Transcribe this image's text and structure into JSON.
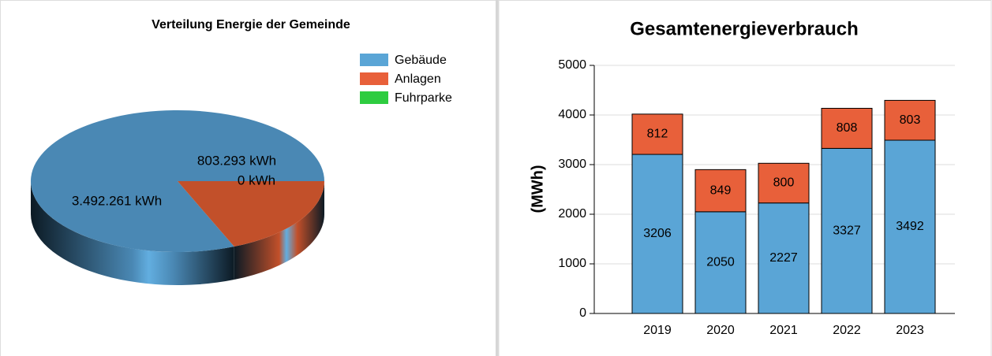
{
  "chart_data": [
    {
      "type": "pie3d",
      "title": "Verteilung Energie der Gemeinde",
      "categories": [
        "Gebäude",
        "Anlagen",
        "Fuhrparke"
      ],
      "values": [
        3492261,
        803293,
        0
      ],
      "value_labels": [
        "3.492.261 kWh",
        "803.293 kWh",
        "0 kWh"
      ],
      "colors": [
        "#4a88b4",
        "#c2502a",
        "#2ecc40"
      ],
      "legend_colors": [
        "#5aa5d6",
        "#e8603a",
        "#2ecc40"
      ],
      "legend": "upper right"
    },
    {
      "type": "stacked_bar",
      "title": "Gesamtenergieverbrauch",
      "ylabel": "(MWh)",
      "categories": [
        "2019",
        "2020",
        "2021",
        "2022",
        "2023"
      ],
      "series": [
        {
          "color": "#5aa5d6",
          "values": [
            3206,
            2050,
            2227,
            3327,
            3492
          ]
        },
        {
          "color": "#e8603a",
          "values": [
            812,
            849,
            800,
            808,
            803
          ]
        }
      ],
      "ylim": [
        0,
        5000
      ],
      "yticks": [
        0,
        1000,
        2000,
        3000,
        4000,
        5000
      ],
      "grid": true
    }
  ]
}
